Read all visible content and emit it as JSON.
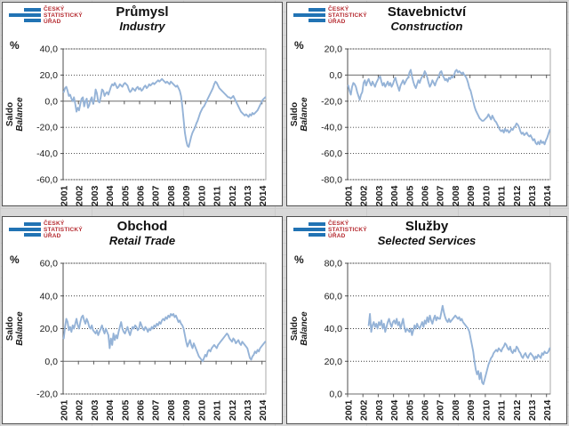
{
  "page": {
    "background": "#d8d8d8"
  },
  "logo": {
    "lines": [
      "ČESKÝ",
      "STATISTICKÝ",
      "ÚŘAD"
    ],
    "bar_color": "#2173B4",
    "text_color": "#B5292F"
  },
  "chart_data": [
    {
      "type": "line",
      "title": "Průmysl",
      "subtitle": "Industry",
      "unit": "%",
      "ylabel_cs": "Saldo",
      "ylabel_en": "Balance",
      "ylim": [
        -60,
        40
      ],
      "ytick_step": 20,
      "grid": "dotted-horizontal",
      "legend": "none",
      "x_tick_years": [
        2001,
        2002,
        2003,
        2004,
        2005,
        2006,
        2007,
        2008,
        2009,
        2010,
        2011,
        2012,
        2013,
        2014
      ],
      "x_domain_slots": 159,
      "series_start_offset": 0,
      "line_color": "#95B3D7",
      "values": [
        7,
        10,
        11,
        8,
        4,
        5,
        2,
        0,
        3,
        -2,
        -8,
        -5,
        -7,
        -2,
        2,
        3,
        -4,
        0,
        2,
        -5,
        -3,
        1,
        3,
        -2,
        1,
        9,
        6,
        0,
        -1,
        3,
        9,
        8,
        4,
        6,
        7,
        5,
        8,
        11,
        13,
        12,
        14,
        12,
        10,
        11,
        13,
        12,
        11,
        13,
        14,
        13,
        12,
        9,
        7,
        8,
        10,
        9,
        8,
        10,
        11,
        9,
        10,
        8,
        9,
        11,
        12,
        10,
        11,
        13,
        12,
        13,
        14,
        13,
        14,
        15,
        16,
        15,
        16,
        17,
        16,
        15,
        14,
        15,
        14,
        13,
        15,
        14,
        13,
        12,
        11,
        12,
        10,
        8,
        4,
        -4,
        -14,
        -24,
        -30,
        -34,
        -35,
        -31,
        -27,
        -24,
        -22,
        -20,
        -17,
        -15,
        -12,
        -9,
        -7,
        -5,
        -4,
        -2,
        0,
        2,
        4,
        6,
        8,
        10,
        13,
        15,
        14,
        12,
        10,
        9,
        8,
        7,
        6,
        5,
        4,
        3,
        3,
        2,
        3,
        4,
        2,
        0,
        -2,
        -4,
        -6,
        -8,
        -9,
        -10,
        -11,
        -10,
        -11,
        -12,
        -10,
        -11,
        -9,
        -10,
        -9,
        -8,
        -7,
        -5,
        -3,
        -1,
        1,
        2,
        3
      ]
    },
    {
      "type": "line",
      "title": "Stavebnictví",
      "subtitle": "Construction",
      "unit": "%",
      "ylabel_cs": "Saldo",
      "ylabel_en": "Balance",
      "ylim": [
        -80,
        20
      ],
      "ytick_step": 20,
      "grid": "dotted-horizontal",
      "legend": "none",
      "x_tick_years": [
        2001,
        2002,
        2003,
        2004,
        2005,
        2006,
        2007,
        2008,
        2009,
        2010,
        2011,
        2012,
        2013,
        2014
      ],
      "x_domain_slots": 159,
      "series_start_offset": 0,
      "line_color": "#95B3D7",
      "values": [
        -8,
        -12,
        -15,
        -9,
        -6,
        -7,
        -9,
        -13,
        -16,
        -19,
        -15,
        -13,
        -6,
        -4,
        -8,
        -5,
        -3,
        -6,
        -8,
        -5,
        -7,
        -9,
        -6,
        -4,
        -2,
        -1,
        -5,
        -8,
        -6,
        -9,
        -7,
        -5,
        -8,
        -6,
        -9,
        -7,
        -4,
        -2,
        -6,
        -9,
        -12,
        -8,
        -6,
        -4,
        -7,
        -5,
        -3,
        -2,
        2,
        4,
        -1,
        -5,
        -8,
        -10,
        -7,
        -4,
        -6,
        -3,
        -1,
        0,
        3,
        1,
        -2,
        -6,
        -9,
        -7,
        -4,
        -6,
        -8,
        -5,
        -3,
        -1,
        2,
        3,
        0,
        -2,
        -4,
        -3,
        -5,
        -2,
        -3,
        -1,
        -2,
        0,
        3,
        4,
        2,
        3,
        2,
        1,
        2,
        0,
        -1,
        -3,
        -6,
        -10,
        -12,
        -16,
        -20,
        -24,
        -27,
        -29,
        -31,
        -33,
        -34,
        -35,
        -35,
        -34,
        -33,
        -32,
        -30,
        -32,
        -34,
        -31,
        -33,
        -35,
        -36,
        -38,
        -40,
        -42,
        -43,
        -42,
        -44,
        -41,
        -43,
        -42,
        -44,
        -43,
        -41,
        -42,
        -40,
        -39,
        -37,
        -38,
        -40,
        -43,
        -45,
        -44,
        -46,
        -45,
        -44,
        -46,
        -47,
        -46,
        -48,
        -50,
        -49,
        -52,
        -53,
        -51,
        -53,
        -50,
        -52,
        -51,
        -53,
        -50,
        -48,
        -45,
        -42
      ]
    },
    {
      "type": "line",
      "title": "Obchod",
      "subtitle": "Retail Trade",
      "unit": "%",
      "ylabel_cs": "Saldo",
      "ylabel_en": "Balance",
      "ylim": [
        -20,
        60
      ],
      "ytick_step": 20,
      "grid": "dotted-horizontal",
      "legend": "none",
      "x_tick_years": [
        2001,
        2002,
        2003,
        2004,
        2005,
        2006,
        2007,
        2008,
        2009,
        2010,
        2011,
        2012,
        2013,
        2014
      ],
      "x_domain_slots": 159,
      "series_start_offset": 0,
      "line_color": "#95B3D7",
      "values": [
        14,
        21,
        26,
        24,
        19,
        21,
        18,
        22,
        20,
        23,
        26,
        22,
        20,
        24,
        27,
        28,
        25,
        23,
        26,
        24,
        21,
        20,
        22,
        19,
        18,
        17,
        19,
        16,
        18,
        20,
        22,
        19,
        17,
        20,
        18,
        16,
        8,
        14,
        10,
        17,
        13,
        16,
        14,
        18,
        21,
        24,
        20,
        18,
        17,
        19,
        21,
        18,
        16,
        19,
        21,
        20,
        22,
        21,
        19,
        20,
        24,
        22,
        20,
        19,
        21,
        20,
        18,
        20,
        19,
        21,
        20,
        22,
        21,
        23,
        22,
        24,
        23,
        25,
        26,
        25,
        27,
        26,
        28,
        27,
        29,
        28,
        29,
        27,
        28,
        26,
        24,
        25,
        23,
        22,
        20,
        16,
        12,
        9,
        11,
        13,
        10,
        8,
        11,
        9,
        7,
        5,
        3,
        2,
        1,
        0,
        2,
        4,
        3,
        6,
        7,
        6,
        8,
        9,
        10,
        9,
        8,
        10,
        11,
        12,
        13,
        14,
        15,
        16,
        17,
        16,
        14,
        13,
        12,
        14,
        13,
        11,
        12,
        13,
        11,
        10,
        12,
        11,
        10,
        9,
        8,
        5,
        2,
        1,
        3,
        4,
        6,
        5,
        7,
        6,
        8,
        9,
        10,
        11,
        12
      ]
    },
    {
      "type": "line",
      "title": "Služby",
      "subtitle": "Selected Services",
      "unit": "%",
      "ylabel_cs": "Saldo",
      "ylabel_en": "Balance",
      "ylim": [
        0,
        80
      ],
      "ytick_step": 20,
      "grid": "dotted-horizontal",
      "legend": "none",
      "x_tick_years": [
        2001,
        2002,
        2003,
        2004,
        2005,
        2006,
        2007,
        2008,
        2009,
        2010,
        2011,
        2012,
        2013,
        2014
      ],
      "x_domain_slots": 159,
      "series_start_offset": 16,
      "line_color": "#95B3D7",
      "values": [
        42,
        49,
        38,
        42,
        44,
        41,
        43,
        40,
        44,
        42,
        45,
        40,
        43,
        38,
        41,
        44,
        46,
        43,
        41,
        44,
        45,
        43,
        46,
        42,
        44,
        40,
        43,
        46,
        41,
        38,
        40,
        39,
        38,
        40,
        36,
        39,
        42,
        40,
        43,
        41,
        40,
        42,
        44,
        41,
        45,
        43,
        47,
        44,
        48,
        45,
        43,
        46,
        48,
        45,
        47,
        46,
        46,
        50,
        54,
        50,
        47,
        45,
        44,
        46,
        44,
        45,
        46,
        47,
        48,
        47,
        46,
        47,
        45,
        46,
        44,
        43,
        42,
        41,
        40,
        38,
        34,
        30,
        26,
        20,
        15,
        12,
        14,
        9,
        13,
        7,
        6,
        9,
        12,
        15,
        18,
        20,
        22,
        23,
        25,
        26,
        27,
        26,
        28,
        27,
        26,
        28,
        29,
        31,
        30,
        28,
        27,
        29,
        26,
        25,
        27,
        26,
        29,
        28,
        26,
        25,
        23,
        22,
        24,
        25,
        23,
        22,
        24,
        25,
        24,
        23,
        21,
        23,
        22,
        24,
        23,
        22,
        25,
        24,
        26,
        25,
        25,
        26,
        28
      ]
    }
  ]
}
